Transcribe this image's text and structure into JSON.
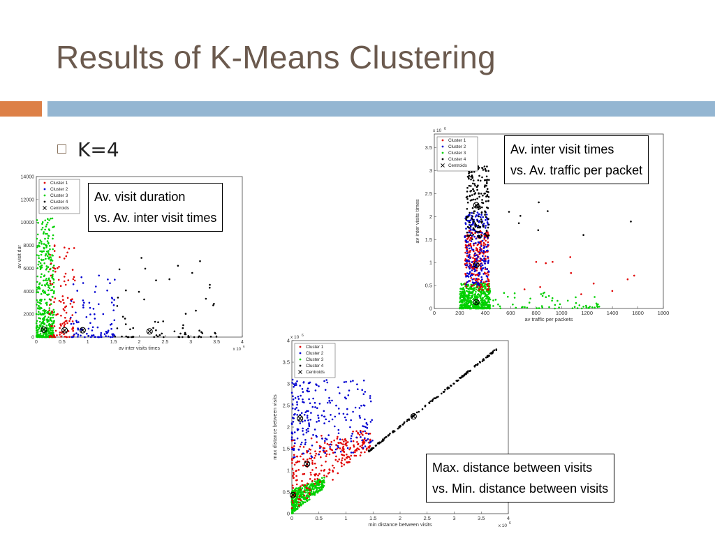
{
  "slide": {
    "title": "Results of K-Means Clustering",
    "bullet": "K=4",
    "colors": {
      "title": "#6b5a4e",
      "accent_orange": "#dd8047",
      "accent_blue": "#94b6d2",
      "bullet_box": "#8a7560"
    }
  },
  "callouts": [
    {
      "line1": "Av. visit duration",
      "line2": "vs. Av. inter visit times"
    },
    {
      "line1": "Av. inter visit times",
      "line2": "vs. Av. traffic per packet"
    },
    {
      "line1": "Max. distance between visits",
      "line2": "vs. Min. distance between visits"
    }
  ],
  "legend_labels": [
    "Cluster 1",
    "Cluster 2",
    "Cluster 3",
    "Cluster 4",
    "Centroids"
  ],
  "cluster_colors": [
    "#e00000",
    "#0000d0",
    "#00d000",
    "#000000"
  ],
  "chart_data": [
    {
      "type": "scatter",
      "xlabel": "av inter visits times",
      "ylabel": "av visit dur",
      "x_scale_note": "x 10^6",
      "xlim": [
        0,
        4000000
      ],
      "ylim": [
        0,
        14000
      ],
      "xticks": [
        "0",
        "0.5",
        "1",
        "1.5",
        "2",
        "2.5",
        "3",
        "3.5",
        "4"
      ],
      "yticks": [
        "0",
        "2000",
        "4000",
        "6000",
        "8000",
        "10000",
        "12000",
        "14000"
      ],
      "centroids": [
        [
          150000,
          650
        ],
        [
          550000,
          600
        ],
        [
          900000,
          600
        ],
        [
          2200000,
          500
        ]
      ]
    },
    {
      "type": "scatter",
      "xlabel": "av traffic per packets",
      "ylabel": "av inter visits times",
      "y_scale_note": "x 10^6",
      "xlim": [
        0,
        1800
      ],
      "ylim": [
        0,
        3800000
      ],
      "xticks": [
        "0",
        "200",
        "400",
        "600",
        "800",
        "1000",
        "1200",
        "1400",
        "1600",
        "1800"
      ],
      "yticks": [
        "0",
        "0.5",
        "1",
        "1.5",
        "2",
        "2.5",
        "3",
        "3.5"
      ],
      "centroids": [
        [
          330,
          140000
        ],
        [
          330,
          950000
        ],
        [
          330,
          2250000
        ]
      ]
    },
    {
      "type": "scatter",
      "xlabel": "min distance between visits",
      "ylabel": "max distance between visits",
      "x_scale_note": "x 10^6",
      "y_scale_note": "x 10^6",
      "xlim": [
        0,
        4000000
      ],
      "ylim": [
        0,
        4000000
      ],
      "xticks": [
        "0",
        "0.5",
        "1",
        "1.5",
        "2",
        "2.5",
        "3",
        "3.5",
        "4"
      ],
      "yticks": [
        "0",
        "0.5",
        "1",
        "1.5",
        "2",
        "2.5",
        "3",
        "3.5",
        "4"
      ],
      "centroids": [
        [
          20000,
          430000
        ],
        [
          280000,
          1150000
        ],
        [
          150000,
          2200000
        ],
        [
          2250000,
          2250000
        ]
      ]
    }
  ]
}
